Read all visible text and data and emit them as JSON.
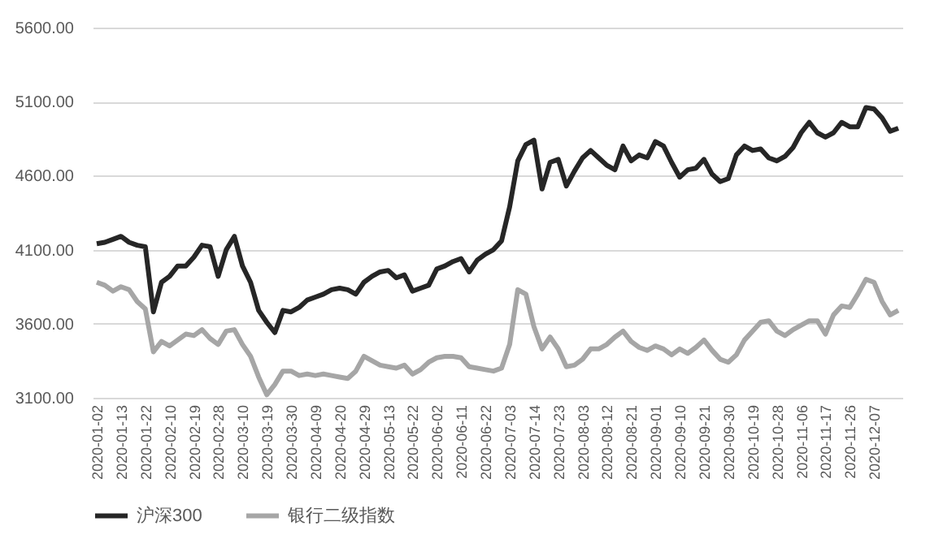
{
  "chart_data": {
    "type": "line",
    "categories": [
      "2020-01-02",
      null,
      null,
      "2020-01-13",
      null,
      null,
      "2020-01-22",
      null,
      null,
      "2020-02-10",
      null,
      null,
      "2020-02-19",
      null,
      null,
      "2020-02-28",
      null,
      null,
      "2020-03-10",
      null,
      null,
      "2020-03-19",
      null,
      null,
      "2020-03-30",
      null,
      null,
      "2020-04-09",
      null,
      null,
      "2020-04-20",
      null,
      null,
      "2020-04-29",
      null,
      null,
      "2020-05-13",
      null,
      null,
      "2020-05-22",
      null,
      null,
      "2020-06-02",
      null,
      null,
      "2020-06-11",
      null,
      null,
      "2020-06-22",
      null,
      null,
      "2020-07-03",
      null,
      null,
      "2020-07-14",
      null,
      null,
      "2020-07-23",
      null,
      null,
      "2020-08-03",
      null,
      null,
      "2020-08-12",
      null,
      null,
      "2020-08-21",
      null,
      null,
      "2020-09-01",
      null,
      null,
      "2020-09-10",
      null,
      null,
      "2020-09-21",
      null,
      null,
      "2020-09-30",
      null,
      null,
      "2020-10-19",
      null,
      null,
      "2020-10-28",
      null,
      null,
      "2020-11-06",
      null,
      null,
      "2020-11-17",
      null,
      null,
      "2020-11-26",
      null,
      null,
      "2020-12-07",
      null,
      null,
      null
    ],
    "series": [
      {
        "name": "沪深300",
        "color": "#262626",
        "values": [
          4140,
          4150,
          4170,
          4190,
          4150,
          4130,
          4120,
          3680,
          3880,
          3920,
          3990,
          3990,
          4050,
          4130,
          4120,
          3920,
          4100,
          4190,
          3990,
          3880,
          3690,
          3610,
          3540,
          3690,
          3680,
          3710,
          3760,
          3780,
          3800,
          3830,
          3840,
          3830,
          3800,
          3880,
          3920,
          3950,
          3960,
          3910,
          3930,
          3820,
          3840,
          3860,
          3970,
          3990,
          4020,
          4040,
          3950,
          4030,
          4070,
          4100,
          4160,
          4390,
          4700,
          4810,
          4840,
          4510,
          4690,
          4710,
          4530,
          4630,
          4720,
          4770,
          4720,
          4670,
          4640,
          4800,
          4700,
          4740,
          4720,
          4830,
          4800,
          4690,
          4590,
          4640,
          4650,
          4710,
          4610,
          4560,
          4580,
          4740,
          4800,
          4770,
          4780,
          4720,
          4700,
          4730,
          4790,
          4890,
          4960,
          4890,
          4860,
          4890,
          4960,
          4930,
          4930,
          5060,
          5050,
          4990,
          4900,
          4920
        ]
      },
      {
        "name": "银行二级指数",
        "color": "#a6a6a6",
        "values": [
          3880,
          3860,
          3820,
          3850,
          3830,
          3750,
          3700,
          3410,
          3480,
          3450,
          3490,
          3530,
          3520,
          3560,
          3500,
          3460,
          3550,
          3560,
          3460,
          3380,
          3240,
          3120,
          3190,
          3280,
          3280,
          3250,
          3260,
          3250,
          3260,
          3250,
          3240,
          3230,
          3280,
          3380,
          3350,
          3320,
          3310,
          3300,
          3320,
          3260,
          3290,
          3340,
          3370,
          3380,
          3380,
          3370,
          3310,
          3300,
          3290,
          3280,
          3300,
          3460,
          3830,
          3800,
          3580,
          3430,
          3510,
          3430,
          3310,
          3320,
          3360,
          3430,
          3430,
          3460,
          3510,
          3550,
          3480,
          3440,
          3420,
          3450,
          3430,
          3390,
          3430,
          3400,
          3440,
          3490,
          3420,
          3360,
          3340,
          3390,
          3490,
          3550,
          3610,
          3620,
          3550,
          3520,
          3560,
          3590,
          3620,
          3620,
          3530,
          3660,
          3720,
          3710,
          3800,
          3900,
          3880,
          3750,
          3660,
          3690
        ]
      }
    ],
    "ylim": [
      3100,
      5600
    ],
    "yticks": [
      {
        "value": 3100,
        "label": "3100.00"
      },
      {
        "value": 3600,
        "label": "3600.00"
      },
      {
        "value": 4100,
        "label": "4100.00"
      },
      {
        "value": 4600,
        "label": "4600.00"
      },
      {
        "value": 5100,
        "label": "5100.00"
      },
      {
        "value": 5600,
        "label": "5600.00"
      }
    ],
    "grid": "y",
    "legend": "bottom",
    "marker": "none",
    "line_style": "solid"
  }
}
